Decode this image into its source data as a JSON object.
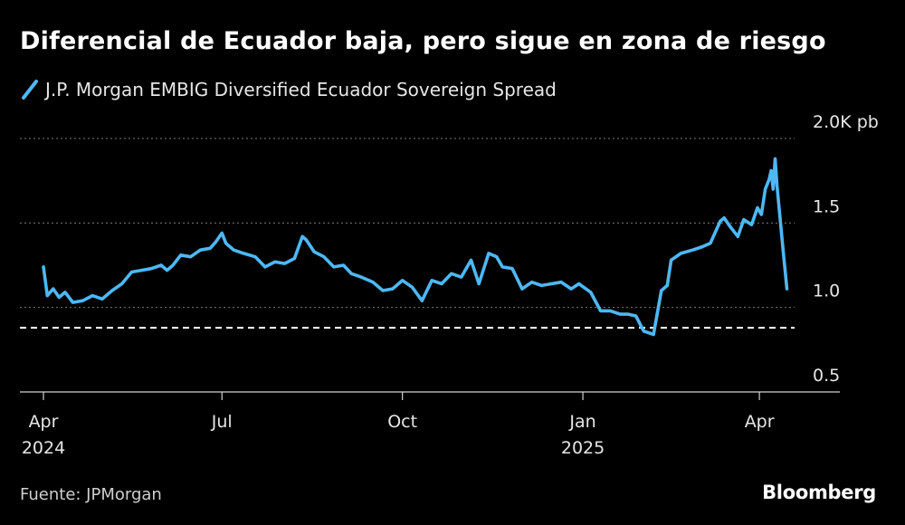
{
  "title": "Diferencial de Ecuador baja, pero sigue en zona de riesgo",
  "source": "Fuente: JPMorgan",
  "brand": "Bloomberg",
  "colors": {
    "line": "#4db8f5",
    "background": "#000000",
    "grid": "#7a7a7a",
    "reference": "#ffffff"
  },
  "chart_data": {
    "type": "line",
    "series": [
      {
        "name": "J.P. Morgan EMBIG Diversified Ecuador Sovereign Spread",
        "points": [
          [
            "2024-04-01",
            1240
          ],
          [
            "2024-04-03",
            1070
          ],
          [
            "2024-04-06",
            1110
          ],
          [
            "2024-04-09",
            1060
          ],
          [
            "2024-04-12",
            1090
          ],
          [
            "2024-04-16",
            1030
          ],
          [
            "2024-04-21",
            1040
          ],
          [
            "2024-04-26",
            1070
          ],
          [
            "2024-05-01",
            1050
          ],
          [
            "2024-05-06",
            1100
          ],
          [
            "2024-05-11",
            1140
          ],
          [
            "2024-05-16",
            1210
          ],
          [
            "2024-05-21",
            1220
          ],
          [
            "2024-05-26",
            1230
          ],
          [
            "2024-05-31",
            1250
          ],
          [
            "2024-06-03",
            1220
          ],
          [
            "2024-06-06",
            1250
          ],
          [
            "2024-06-10",
            1310
          ],
          [
            "2024-06-15",
            1300
          ],
          [
            "2024-06-20",
            1340
          ],
          [
            "2024-06-25",
            1350
          ],
          [
            "2024-06-28",
            1390
          ],
          [
            "2024-07-01",
            1440
          ],
          [
            "2024-07-03",
            1380
          ],
          [
            "2024-07-07",
            1340
          ],
          [
            "2024-07-12",
            1320
          ],
          [
            "2024-07-18",
            1300
          ],
          [
            "2024-07-23",
            1240
          ],
          [
            "2024-07-28",
            1270
          ],
          [
            "2024-08-02",
            1260
          ],
          [
            "2024-08-07",
            1290
          ],
          [
            "2024-08-11",
            1420
          ],
          [
            "2024-08-13",
            1400
          ],
          [
            "2024-08-17",
            1330
          ],
          [
            "2024-08-22",
            1300
          ],
          [
            "2024-08-27",
            1240
          ],
          [
            "2024-09-01",
            1250
          ],
          [
            "2024-09-05",
            1200
          ],
          [
            "2024-09-10",
            1180
          ],
          [
            "2024-09-16",
            1150
          ],
          [
            "2024-09-21",
            1100
          ],
          [
            "2024-09-26",
            1110
          ],
          [
            "2024-10-01",
            1160
          ],
          [
            "2024-10-06",
            1120
          ],
          [
            "2024-10-11",
            1040
          ],
          [
            "2024-10-16",
            1160
          ],
          [
            "2024-10-21",
            1140
          ],
          [
            "2024-10-26",
            1200
          ],
          [
            "2024-10-31",
            1180
          ],
          [
            "2024-11-05",
            1280
          ],
          [
            "2024-11-09",
            1140
          ],
          [
            "2024-11-14",
            1320
          ],
          [
            "2024-11-18",
            1300
          ],
          [
            "2024-11-21",
            1240
          ],
          [
            "2024-11-26",
            1230
          ],
          [
            "2024-12-01",
            1110
          ],
          [
            "2024-12-06",
            1150
          ],
          [
            "2024-12-11",
            1130
          ],
          [
            "2024-12-16",
            1140
          ],
          [
            "2024-12-21",
            1150
          ],
          [
            "2024-12-26",
            1110
          ],
          [
            "2024-12-30",
            1140
          ],
          [
            "2025-01-05",
            1090
          ],
          [
            "2025-01-10",
            980
          ],
          [
            "2025-01-15",
            980
          ],
          [
            "2025-01-20",
            960
          ],
          [
            "2025-01-24",
            960
          ],
          [
            "2025-01-28",
            950
          ],
          [
            "2025-02-01",
            860
          ],
          [
            "2025-02-06",
            840
          ],
          [
            "2025-02-10",
            1100
          ],
          [
            "2025-02-13",
            1130
          ],
          [
            "2025-02-15",
            1280
          ],
          [
            "2025-02-20",
            1320
          ],
          [
            "2025-02-26",
            1340
          ],
          [
            "2025-03-03",
            1360
          ],
          [
            "2025-03-07",
            1380
          ],
          [
            "2025-03-12",
            1510
          ],
          [
            "2025-03-14",
            1530
          ],
          [
            "2025-03-17",
            1480
          ],
          [
            "2025-03-21",
            1420
          ],
          [
            "2025-03-24",
            1520
          ],
          [
            "2025-03-28",
            1490
          ],
          [
            "2025-03-31",
            1590
          ],
          [
            "2025-04-02",
            1550
          ],
          [
            "2025-04-04",
            1700
          ],
          [
            "2025-04-06",
            1760
          ],
          [
            "2025-04-07",
            1810
          ],
          [
            "2025-04-08",
            1700
          ],
          [
            "2025-04-09",
            1880
          ],
          [
            "2025-04-10",
            1720
          ],
          [
            "2025-04-13",
            1350
          ],
          [
            "2025-04-15",
            1110
          ]
        ]
      }
    ],
    "x_ticks": [
      {
        "date": "2024-04-01",
        "label": "Apr",
        "year": "2024"
      },
      {
        "date": "2024-07-01",
        "label": "Jul",
        "year": ""
      },
      {
        "date": "2024-10-01",
        "label": "Oct",
        "year": ""
      },
      {
        "date": "2025-01-01",
        "label": "Jan",
        "year": "2025"
      },
      {
        "date": "2025-04-01",
        "label": "Apr",
        "year": ""
      }
    ],
    "y_ticks": [
      {
        "value": 2000,
        "label": "2.0K pb"
      },
      {
        "value": 1500,
        "label": "1.5"
      },
      {
        "value": 1000,
        "label": "1.0"
      },
      {
        "value": 500,
        "label": "0.5"
      }
    ],
    "ylim": [
      500,
      2000
    ],
    "xlim": [
      "2024-03-20",
      "2025-05-12"
    ],
    "reference_line": 880,
    "grid": "horizontal dotted"
  }
}
